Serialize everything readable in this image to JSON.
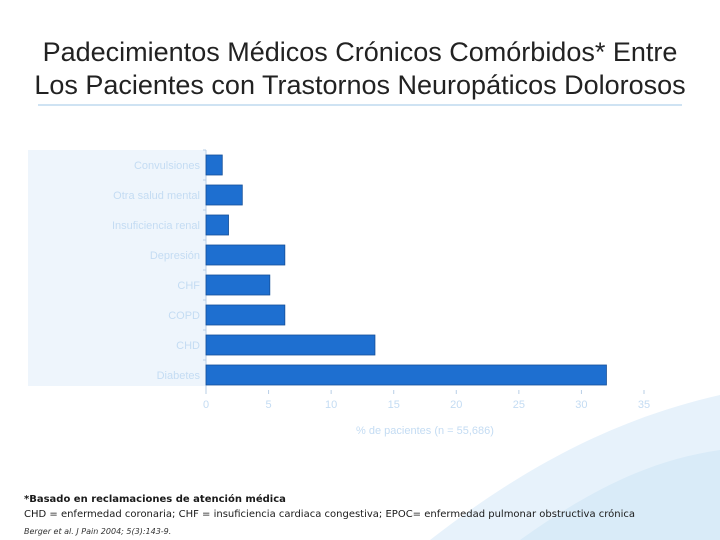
{
  "title": {
    "line1": "Padecimientos Médicos Crónicos Comórbidos* Entre",
    "line2": "Los Pacientes con Trastornos Neuropáticos Dolorosos"
  },
  "colors": {
    "bar": "#1e6fd0",
    "bar_edge": "#154f99",
    "tick_label": "#c4dcf3",
    "panel": "#eef5fc"
  },
  "chart_data": {
    "type": "bar",
    "orientation": "horizontal",
    "categories": [
      "Convulsiones",
      "Otra salud mental",
      "Insuficiencia renal",
      "Depresión",
      "CHF",
      "COPD",
      "CHD",
      "Diabetes"
    ],
    "values": [
      1.3,
      2.9,
      1.8,
      6.3,
      5.1,
      6.3,
      13.5,
      32.0
    ],
    "xlabel": "% de pacientes (n = 55,686)",
    "xticks": [
      0,
      5,
      10,
      15,
      20,
      25,
      30,
      35
    ],
    "xlim": [
      0,
      35
    ],
    "grid": false
  },
  "footnote": {
    "line1": "*Basado en reclamaciones de atención médica",
    "line2": "CHD = enfermedad coronaria; CHF = insuficiencia cardiaca congestiva; EPOC= enfermedad pulmonar obstructiva crónica",
    "reference": "Berger et al. J Pain 2004; 5(3):143-9."
  }
}
